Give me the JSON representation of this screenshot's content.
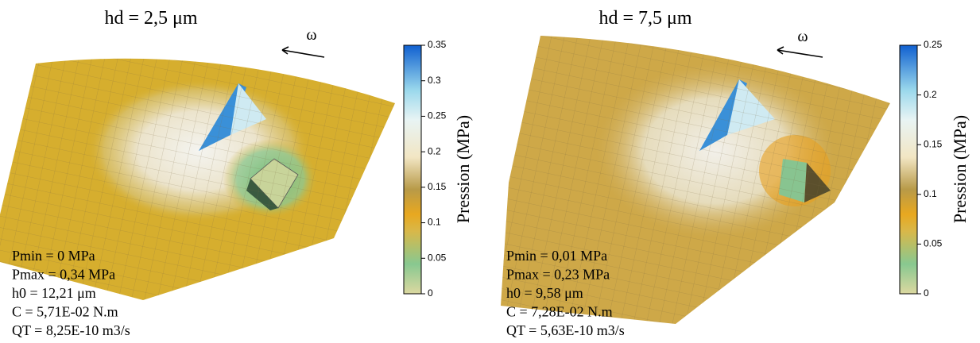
{
  "panels": [
    {
      "title": "hd = 2,5 μm",
      "omega": "ω",
      "colorbar": {
        "label": "Pression (MPa)",
        "lim": [
          0,
          0.35
        ],
        "ticks": [
          0,
          0.05,
          0.1,
          0.15,
          0.2,
          0.25,
          0.3,
          0.35
        ]
      },
      "stats": [
        "Pmin = 0 MPa",
        "Pmax = 0,34 MPa",
        "h0 = 12,21 μm",
        "C = 5,71E-02 N.m",
        "QT = 8,25E-10 m3/s"
      ]
    },
    {
      "title": "hd = 7,5 μm",
      "omega": "ω",
      "colorbar": {
        "label": "Pression (MPa)",
        "lim": [
          0,
          0.25
        ],
        "ticks": [
          0,
          0.05,
          0.1,
          0.15,
          0.2,
          0.25
        ]
      },
      "stats": [
        "Pmin = 0,01 MPa",
        "Pmax = 0,23 MPa",
        "h0 = 9,58 μm",
        "C = 7,28E-02 N.m",
        "QT = 5,63E-10 m3/s"
      ]
    }
  ]
}
